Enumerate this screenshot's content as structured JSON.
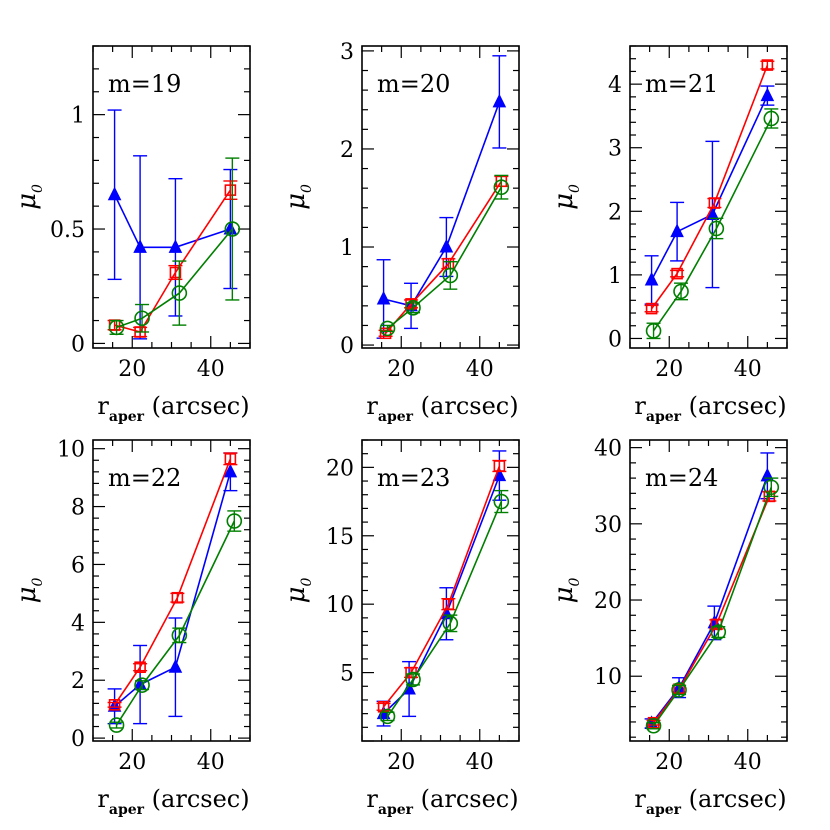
{
  "chart_data": [
    {
      "type": "line",
      "panel_label": "m=19",
      "xlabel": "r",
      "xlabel_sub": "aper",
      "xlabel_unit": "(arcsec)",
      "ylabel": "μ",
      "ylabel_sub": "0",
      "xlim": [
        10,
        50
      ],
      "ylim": [
        -0.02,
        1.3
      ],
      "xticks": [
        20,
        40
      ],
      "yticks": [
        0,
        0.5,
        1
      ],
      "ytick_labels": [
        "0",
        "0.5",
        "1"
      ],
      "series": [
        {
          "color": "#0000ff",
          "marker": "triangle",
          "x": [
            15.5,
            22,
            31,
            45
          ],
          "y": [
            0.65,
            0.42,
            0.42,
            0.5
          ],
          "err": [
            0.37,
            0.4,
            0.3,
            0.26
          ]
        },
        {
          "color": "#ff0000",
          "marker": "square",
          "x": [
            15.5,
            22,
            31,
            45
          ],
          "y": [
            0.08,
            0.05,
            0.31,
            0.67
          ],
          "err": [
            0.02,
            0.02,
            0.03,
            0.04
          ]
        },
        {
          "color": "#007f00",
          "marker": "circle",
          "x": [
            16,
            22.5,
            32,
            45.5
          ],
          "y": [
            0.07,
            0.11,
            0.22,
            0.5
          ],
          "err": [
            0.03,
            0.06,
            0.14,
            0.31
          ]
        }
      ]
    },
    {
      "type": "line",
      "panel_label": "m=20",
      "xlabel": "r",
      "xlabel_sub": "aper",
      "xlabel_unit": "(arcsec)",
      "ylabel": "μ",
      "ylabel_sub": "0",
      "xlim": [
        10,
        50
      ],
      "ylim": [
        -0.03,
        3.05
      ],
      "xticks": [
        20,
        40
      ],
      "yticks": [
        0,
        1,
        2,
        3
      ],
      "ytick_labels": [
        "0",
        "1",
        "2",
        "3"
      ],
      "series": [
        {
          "color": "#0000ff",
          "marker": "triangle",
          "x": [
            15.5,
            22.5,
            31.5,
            45
          ],
          "y": [
            0.47,
            0.4,
            1.0,
            2.48
          ],
          "err": [
            0.4,
            0.23,
            0.3,
            0.47
          ]
        },
        {
          "color": "#ff0000",
          "marker": "square",
          "x": [
            16,
            22.5,
            32,
            45.5
          ],
          "y": [
            0.12,
            0.42,
            0.83,
            1.67
          ],
          "err": [
            0.03,
            0.04,
            0.05,
            0.05
          ]
        },
        {
          "color": "#007f00",
          "marker": "circle",
          "x": [
            16.5,
            23,
            32.5,
            45.5
          ],
          "y": [
            0.17,
            0.38,
            0.71,
            1.61
          ],
          "err": [
            0.03,
            0.05,
            0.14,
            0.12
          ]
        }
      ]
    },
    {
      "type": "line",
      "panel_label": "m=21",
      "xlabel": "r",
      "xlabel_sub": "aper",
      "xlabel_unit": "(arcsec)",
      "ylabel": "μ",
      "ylabel_sub": "0",
      "xlim": [
        10,
        50
      ],
      "ylim": [
        -0.15,
        4.6
      ],
      "xticks": [
        20,
        40
      ],
      "yticks": [
        0,
        1,
        2,
        3,
        4
      ],
      "ytick_labels": [
        "0",
        "1",
        "2",
        "3",
        "4"
      ],
      "series": [
        {
          "color": "#0000ff",
          "marker": "triangle",
          "x": [
            15.5,
            22,
            31,
            45
          ],
          "y": [
            0.92,
            1.68,
            1.95,
            3.82
          ],
          "err": [
            0.38,
            0.46,
            1.15,
            0.15
          ]
        },
        {
          "color": "#ff0000",
          "marker": "square",
          "x": [
            15.5,
            22,
            31.5,
            45
          ],
          "y": [
            0.47,
            1.02,
            2.13,
            4.3
          ],
          "err": [
            0.05,
            0.05,
            0.07,
            0.06
          ]
        },
        {
          "color": "#007f00",
          "marker": "circle",
          "x": [
            16,
            23,
            32,
            46
          ],
          "y": [
            0.12,
            0.74,
            1.73,
            3.46
          ],
          "err": [
            0.12,
            0.13,
            0.16,
            0.15
          ]
        }
      ]
    },
    {
      "type": "line",
      "panel_label": "m=22",
      "xlabel": "r",
      "xlabel_sub": "aper",
      "xlabel_unit": "(arcsec)",
      "ylabel": "μ",
      "ylabel_sub": "0",
      "xlim": [
        10,
        50
      ],
      "ylim": [
        -0.1,
        10.3
      ],
      "xticks": [
        20,
        40
      ],
      "yticks": [
        0,
        2,
        4,
        6,
        8,
        10
      ],
      "ytick_labels": [
        "0",
        "2",
        "4",
        "6",
        "8",
        "10"
      ],
      "series": [
        {
          "color": "#0000ff",
          "marker": "triangle",
          "x": [
            15.5,
            22,
            31,
            45
          ],
          "y": [
            1.1,
            1.85,
            2.45,
            9.2
          ],
          "err": [
            0.6,
            1.35,
            1.7,
            0.65
          ]
        },
        {
          "color": "#ff0000",
          "marker": "square",
          "x": [
            15.5,
            22,
            31.5,
            45
          ],
          "y": [
            1.15,
            2.45,
            4.85,
            9.65
          ],
          "err": [
            0.08,
            0.12,
            0.15,
            0.2
          ]
        },
        {
          "color": "#007f00",
          "marker": "circle",
          "x": [
            16,
            22.5,
            32,
            46
          ],
          "y": [
            0.45,
            1.83,
            3.55,
            7.5
          ],
          "err": [
            0.1,
            0.15,
            0.25,
            0.35
          ]
        }
      ]
    },
    {
      "type": "line",
      "panel_label": "m=23",
      "xlabel": "r",
      "xlabel_sub": "aper",
      "xlabel_unit": "(arcsec)",
      "ylabel": "μ",
      "ylabel_sub": "0",
      "xlim": [
        10,
        50
      ],
      "ylim": [
        0,
        22
      ],
      "xticks": [
        20,
        40
      ],
      "yticks": [
        5,
        10,
        15,
        20
      ],
      "ytick_labels": [
        "5",
        "10",
        "15",
        "20"
      ],
      "series": [
        {
          "color": "#0000ff",
          "marker": "triangle",
          "x": [
            15.5,
            22,
            31.5,
            45
          ],
          "y": [
            2.0,
            3.8,
            9.3,
            19.4
          ],
          "err": [
            0.9,
            2.0,
            1.9,
            1.8
          ]
        },
        {
          "color": "#ff0000",
          "marker": "square",
          "x": [
            15.5,
            22.5,
            32,
            45
          ],
          "y": [
            2.5,
            5.0,
            10.0,
            20.1
          ],
          "err": [
            0.25,
            0.35,
            0.4,
            0.4
          ]
        },
        {
          "color": "#007f00",
          "marker": "circle",
          "x": [
            16.5,
            23,
            32.5,
            45.5
          ],
          "y": [
            1.8,
            4.5,
            8.6,
            17.5
          ],
          "err": [
            0.3,
            0.4,
            0.6,
            0.8
          ]
        }
      ]
    },
    {
      "type": "line",
      "panel_label": "m=24",
      "xlabel": "r",
      "xlabel_sub": "aper",
      "xlabel_unit": "(arcsec)",
      "ylabel": "μ",
      "ylabel_sub": "0",
      "xlim": [
        10,
        50
      ],
      "ylim": [
        1.5,
        41
      ],
      "xticks": [
        20,
        40
      ],
      "yticks": [
        10,
        20,
        30,
        40
      ],
      "ytick_labels": [
        "10",
        "20",
        "30",
        "40"
      ],
      "series": [
        {
          "color": "#0000ff",
          "marker": "triangle",
          "x": [
            15.5,
            22.5,
            31.5,
            45
          ],
          "y": [
            3.8,
            8.5,
            17.0,
            36.3
          ],
          "err": [
            0.6,
            1.3,
            2.2,
            3.0
          ]
        },
        {
          "color": "#ff0000",
          "marker": "square",
          "x": [
            16,
            22.5,
            32,
            45.5
          ],
          "y": [
            3.9,
            8.3,
            16.8,
            33.6
          ],
          "err": [
            0.3,
            0.5,
            0.6,
            0.6
          ]
        },
        {
          "color": "#007f00",
          "marker": "circle",
          "x": [
            16,
            22.5,
            32.5,
            46
          ],
          "y": [
            3.5,
            8.2,
            15.8,
            34.8
          ],
          "err": [
            0.4,
            0.6,
            0.7,
            1.2
          ]
        }
      ]
    }
  ]
}
